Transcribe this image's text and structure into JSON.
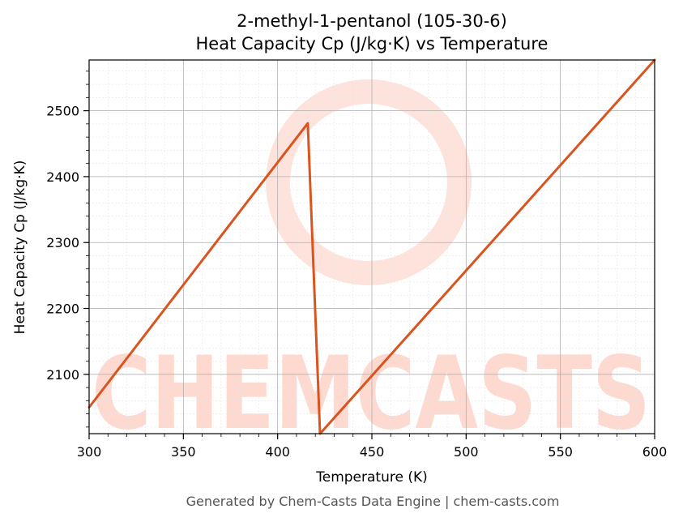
{
  "chart_data": {
    "type": "line",
    "title_line1": "2-methyl-1-pentanol (105-30-6)",
    "title_line2": "Heat Capacity Cp (J/kg·K) vs Temperature",
    "xlabel": "Temperature (K)",
    "ylabel": "Heat Capacity Cp (J/kg·K)",
    "xlim": [
      300,
      600
    ],
    "ylim": [
      2010,
      2577
    ],
    "xticks": [
      300,
      350,
      400,
      450,
      500,
      550,
      600
    ],
    "yticks": [
      2100,
      2200,
      2300,
      2400,
      2500
    ],
    "grid": true,
    "series": [
      {
        "color": "#d9541e",
        "x": [
          300,
          416,
          422.5,
          600
        ],
        "y": [
          2050,
          2481,
          2010,
          2577
        ]
      }
    ]
  },
  "watermark": "CHEMCASTS",
  "footer": "Generated by Chem-Casts Data Engine | chem-casts.com"
}
